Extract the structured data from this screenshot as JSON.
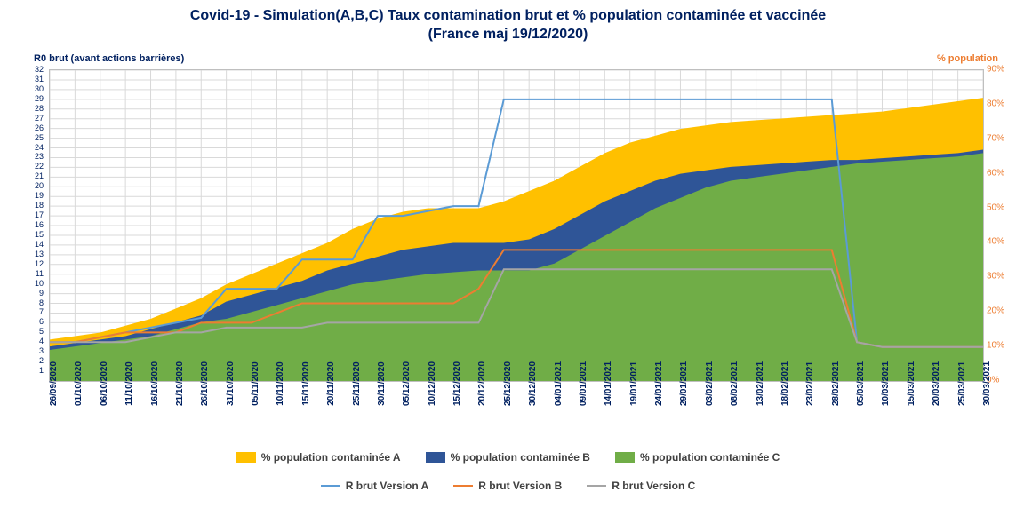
{
  "title_line1": "Covid-19 - Simulation(A,B,C) Taux contamination brut et % population contaminée et vaccinée",
  "title_line2": "(France maj 19/12/2020)",
  "left_axis_label": "R0 brut (avant actions barrières)",
  "right_axis_label": "% population",
  "chart": {
    "type": "combo-area-line",
    "background_color": "#ffffff",
    "grid_color": "#d9d9d9",
    "border_color": "#bfbfbf",
    "left_axis": {
      "min": 0,
      "max": 32,
      "ticks": [
        1,
        2,
        3,
        4,
        5,
        6,
        7,
        8,
        9,
        10,
        11,
        12,
        13,
        14,
        15,
        16,
        17,
        18,
        19,
        20,
        21,
        22,
        23,
        24,
        25,
        26,
        27,
        28,
        29,
        30,
        31,
        32
      ],
      "color": "#002060",
      "fontsize": 9
    },
    "right_axis": {
      "min": 0,
      "max": 90,
      "tick_step": 10,
      "color": "#ed7d31",
      "fontsize": 10,
      "suffix": "%"
    },
    "x_categories": [
      "26/09/2020",
      "01/10/2020",
      "06/10/2020",
      "11/10/2020",
      "16/10/2020",
      "21/10/2020",
      "26/10/2020",
      "31/10/2020",
      "05/11/2020",
      "10/11/2020",
      "15/11/2020",
      "20/11/2020",
      "25/11/2020",
      "30/11/2020",
      "05/12/2020",
      "10/12/2020",
      "15/12/2020",
      "20/12/2020",
      "25/12/2020",
      "30/12/2020",
      "04/01/2021",
      "09/01/2021",
      "14/01/2021",
      "19/01/2021",
      "24/01/2021",
      "29/01/2021",
      "03/02/2021",
      "08/02/2021",
      "13/02/2021",
      "18/02/2021",
      "23/02/2021",
      "28/02/2021",
      "05/03/2021",
      "10/03/2021",
      "15/03/2021",
      "20/03/2021",
      "25/03/2021",
      "30/03/2021"
    ],
    "x_label_color": "#002060",
    "x_label_fontsize": 10,
    "area_series": [
      {
        "name": "% population contaminée A",
        "color": "#ffc000",
        "values": [
          12,
          13,
          14,
          16,
          18,
          21,
          24,
          28,
          31,
          34,
          37,
          40,
          44,
          47,
          49,
          50,
          50,
          50,
          52,
          55,
          58,
          62,
          66,
          69,
          71,
          73,
          74,
          75,
          75.5,
          76,
          76.5,
          77,
          77.5,
          78,
          79,
          80,
          81,
          82
        ]
      },
      {
        "name": "% population contaminée B",
        "color": "#2f5597",
        "values": [
          10,
          11,
          12,
          13,
          15,
          17,
          19,
          23,
          25,
          27,
          29,
          32,
          34,
          36,
          38,
          39,
          40,
          40,
          40,
          41,
          44,
          48,
          52,
          55,
          58,
          60,
          61,
          62,
          62.5,
          63,
          63.5,
          64,
          64,
          64.5,
          65,
          65.5,
          66,
          67
        ]
      },
      {
        "name": "% population contaminée C",
        "color": "#70ad47",
        "values": [
          9,
          10,
          11,
          12,
          13,
          15,
          17,
          18,
          20,
          22,
          24,
          26,
          28,
          29,
          30,
          31,
          31.5,
          32,
          32,
          32,
          34,
          38,
          42,
          46,
          50,
          53,
          56,
          58,
          59,
          60,
          61,
          62,
          63,
          63.5,
          64,
          64.5,
          65,
          66
        ]
      }
    ],
    "line_series": [
      {
        "name": "R brut Version A",
        "color": "#5b9bd5",
        "width": 2,
        "values": [
          4,
          4,
          4.5,
          5,
          5.5,
          6,
          6.5,
          9.5,
          9.5,
          9.5,
          12.5,
          12.5,
          12.5,
          17,
          17,
          17.5,
          18,
          18,
          29,
          29,
          29,
          29,
          29,
          29,
          29,
          29,
          29,
          29,
          29,
          29,
          29,
          29,
          4,
          3.5,
          3.5,
          3.5,
          3.5,
          3.5
        ]
      },
      {
        "name": "R brut Version B",
        "color": "#ed7d31",
        "width": 2,
        "values": [
          4,
          4,
          4.5,
          5,
          5,
          5,
          6,
          6,
          6,
          7,
          8,
          8,
          8,
          8,
          8,
          8,
          8,
          9.5,
          13.5,
          13.5,
          13.5,
          13.5,
          13.5,
          13.5,
          13.5,
          13.5,
          13.5,
          13.5,
          13.5,
          13.5,
          13.5,
          13.5,
          4,
          3.5,
          3.5,
          3.5,
          3.5,
          3.5
        ]
      },
      {
        "name": "R brut Version C",
        "color": "#a5a5a5",
        "width": 2,
        "values": [
          4,
          4,
          4,
          4,
          4.5,
          5,
          5,
          5.5,
          5.5,
          5.5,
          5.5,
          6,
          6,
          6,
          6,
          6,
          6,
          6,
          11.5,
          11.5,
          11.5,
          11.5,
          11.5,
          11.5,
          11.5,
          11.5,
          11.5,
          11.5,
          11.5,
          11.5,
          11.5,
          11.5,
          4,
          3.5,
          3.5,
          3.5,
          3.5,
          3.5
        ]
      }
    ]
  },
  "legend": {
    "items": [
      {
        "label": "% population contaminée A",
        "type": "area",
        "color": "#ffc000"
      },
      {
        "label": "% population contaminée B",
        "type": "area",
        "color": "#2f5597"
      },
      {
        "label": "% population contaminée C",
        "type": "area",
        "color": "#70ad47"
      },
      {
        "label": "R brut Version A",
        "type": "line",
        "color": "#5b9bd5"
      },
      {
        "label": "R brut Version B",
        "type": "line",
        "color": "#ed7d31"
      },
      {
        "label": "R brut Version C",
        "type": "line",
        "color": "#a5a5a5"
      }
    ]
  }
}
